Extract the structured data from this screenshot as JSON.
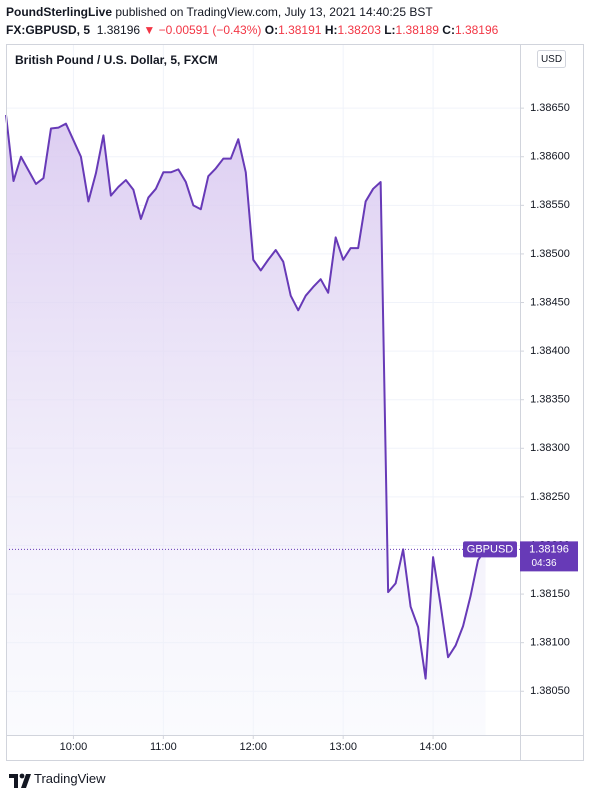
{
  "header": {
    "publisher": "PoundSterlingLive",
    "published": "published on TradingView.com, July 13, 2021 14:40:25 BST"
  },
  "quote": {
    "symbol": "FX:GBPUSD, 5",
    "last": "1.38196",
    "change": "▼ −0.00591 (−0.43%)",
    "open_label": "O:",
    "open": "1.38191",
    "high_label": "H:",
    "high": "1.38203",
    "low_label": "L:",
    "low": "1.38189",
    "close_label": "C:",
    "close": "1.38196"
  },
  "chart_data": {
    "type": "line",
    "title": "British Pound / U.S. Dollar, 5, FXCM",
    "currency": "USD",
    "countdown": "04:36",
    "grid": true,
    "x": [
      555,
      560,
      565,
      570,
      575,
      580,
      585,
      590,
      595,
      600,
      605,
      610,
      615,
      620,
      625,
      630,
      635,
      640,
      645,
      650,
      655,
      660,
      665,
      670,
      675,
      680,
      685,
      690,
      695,
      700,
      705,
      710,
      715,
      720,
      725,
      730,
      735,
      740,
      745,
      750,
      755,
      760,
      765,
      770,
      775,
      780,
      785,
      790,
      795,
      800,
      805,
      810,
      815,
      820,
      825,
      830,
      835,
      840,
      845,
      850,
      855,
      860,
      865,
      870,
      875
    ],
    "series": [
      {
        "name": "GBPUSD",
        "color": "#673ab7",
        "values": [
          1.38643,
          1.38575,
          1.386,
          1.38586,
          1.38572,
          1.38578,
          1.38629,
          1.3863,
          1.38634,
          1.38617,
          1.386,
          1.38554,
          1.38583,
          1.38622,
          1.3856,
          1.38569,
          1.38576,
          1.38566,
          1.38536,
          1.38558,
          1.38567,
          1.38584,
          1.38584,
          1.38587,
          1.38574,
          1.3855,
          1.38546,
          1.3858,
          1.38588,
          1.38598,
          1.38598,
          1.38618,
          1.38584,
          1.38494,
          1.38483,
          1.38494,
          1.38504,
          1.38492,
          1.38457,
          1.38442,
          1.38457,
          1.38466,
          1.38474,
          1.3846,
          1.38517,
          1.38494,
          1.38506,
          1.38506,
          1.38554,
          1.38567,
          1.38574,
          1.38152,
          1.38161,
          1.38196,
          1.38137,
          1.38116,
          1.38063,
          1.38188,
          1.38139,
          1.38085,
          1.38097,
          1.38117,
          1.38148,
          1.38185,
          1.38196
        ]
      }
    ],
    "xlim": [
      555,
      898
    ],
    "ylim": [
      1.38005,
      1.38716
    ],
    "xticks": [
      {
        "value": 600,
        "label": "10:00"
      },
      {
        "value": 660,
        "label": "11:00"
      },
      {
        "value": 720,
        "label": "12:00"
      },
      {
        "value": 780,
        "label": "13:00"
      },
      {
        "value": 840,
        "label": "14:00"
      }
    ],
    "yticks": [
      {
        "value": 1.3805,
        "label": "1.38050"
      },
      {
        "value": 1.381,
        "label": "1.38100"
      },
      {
        "value": 1.3815,
        "label": "1.38150"
      },
      {
        "value": 1.382,
        "label": "1.38200"
      },
      {
        "value": 1.3825,
        "label": "1.38250"
      },
      {
        "value": 1.383,
        "label": "1.38300"
      },
      {
        "value": 1.3835,
        "label": "1.38350"
      },
      {
        "value": 1.384,
        "label": "1.38400"
      },
      {
        "value": 1.3845,
        "label": "1.38450"
      },
      {
        "value": 1.385,
        "label": "1.38500"
      },
      {
        "value": 1.3855,
        "label": "1.38550"
      },
      {
        "value": 1.386,
        "label": "1.38600"
      },
      {
        "value": 1.3865,
        "label": "1.38650"
      }
    ]
  },
  "footer": {
    "brand": "TradingView"
  }
}
